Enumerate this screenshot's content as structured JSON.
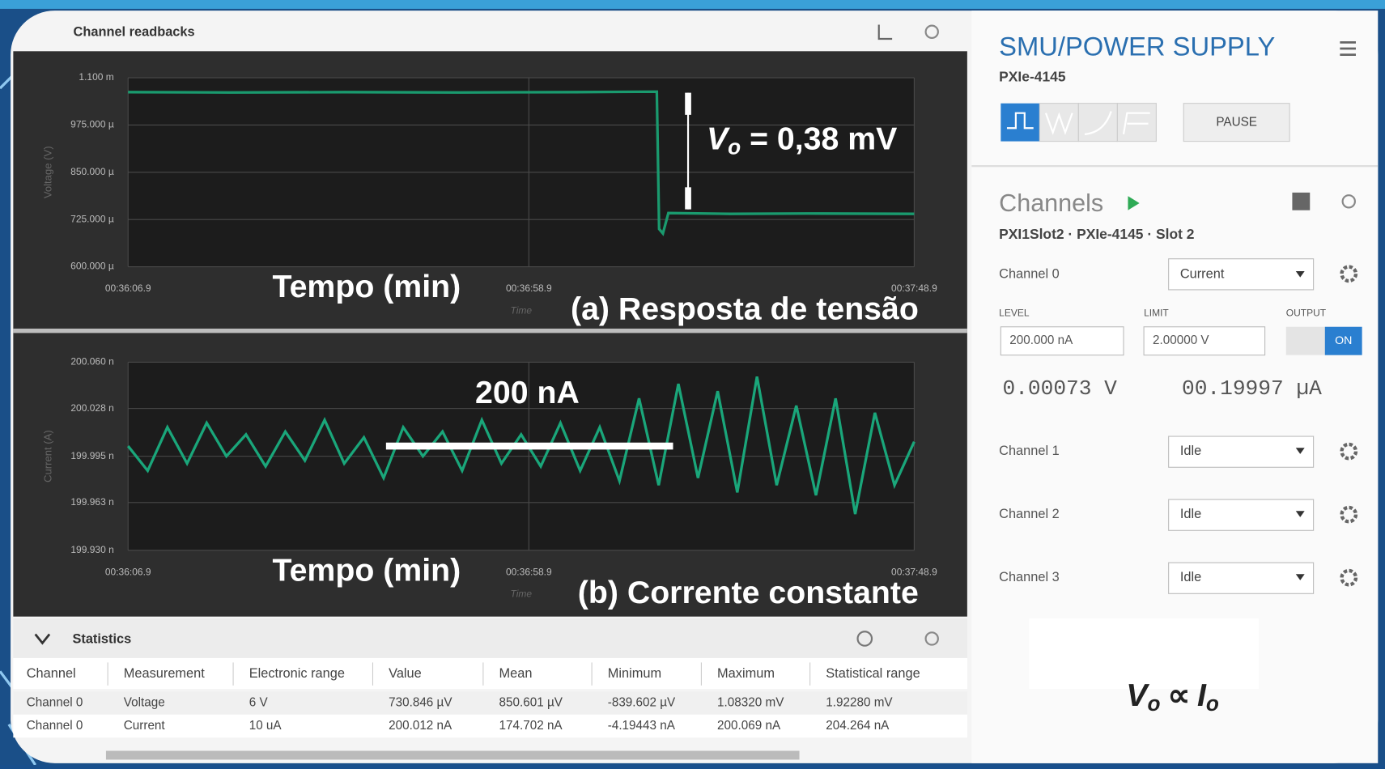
{
  "chart_data": [
    {
      "type": "line",
      "y_label": "Voltage (V)",
      "x_label": "Time",
      "color": "#1a9a6e",
      "grid": true,
      "xlim": [
        2166.9,
        2268.9
      ],
      "xticks": [
        {
          "value": 2166.9,
          "label": "00:36:06.9"
        },
        {
          "value": 2218.9,
          "label": "00:36:58.9"
        },
        {
          "value": 2268.9,
          "label": "00:37:48.9"
        }
      ],
      "ylim": [
        0.0006,
        0.0011
      ],
      "yticks": [
        {
          "value": 0.0011,
          "label": "1.100 m"
        },
        {
          "value": 0.000975,
          "label": "975.000 µ"
        },
        {
          "value": 0.00085,
          "label": "850.000 µ"
        },
        {
          "value": 0.000725,
          "label": "725.000 µ"
        },
        {
          "value": 0.0006,
          "label": "600.000 µ"
        }
      ],
      "x": [
        2166.9,
        2180,
        2195,
        2210,
        2225,
        2235.5,
        2235.8,
        2236.3,
        2237,
        2245,
        2255,
        2268.9
      ],
      "values": [
        0.001062,
        0.001061,
        0.001062,
        0.001061,
        0.001062,
        0.001063,
        0.0007,
        0.000688,
        0.000742,
        0.00074,
        0.000741,
        0.00074
      ],
      "annotations": [
        "Tempo (min)",
        "(a) Resposta de tensão"
      ],
      "marker_label": {
        "symbol": "V",
        "subscript": "o",
        "text": "= 0,38 mV"
      }
    },
    {
      "type": "line",
      "y_label": "Current (A)",
      "x_label": "Time",
      "color": "#1aa67a",
      "grid": true,
      "xlim": [
        2166.9,
        2268.9
      ],
      "xticks": [
        {
          "value": 2166.9,
          "label": "00:36:06.9"
        },
        {
          "value": 2218.9,
          "label": "00:36:58.9"
        },
        {
          "value": 2268.9,
          "label": "00:37:48.9"
        }
      ],
      "ylim": [
        1.9993e-07,
        2.0006e-07
      ],
      "yticks": [
        {
          "value": 2.0006e-07,
          "label": "200.060 n"
        },
        {
          "value": 2.00028e-07,
          "label": "200.028 n"
        },
        {
          "value": 1.99995e-07,
          "label": "199.995 n"
        },
        {
          "value": 1.99963e-07,
          "label": "199.963 n"
        },
        {
          "value": 1.9993e-07,
          "label": "199.930 n"
        }
      ],
      "x": [
        2166.9,
        2169.45,
        2172.0,
        2174.55,
        2177.1,
        2179.65,
        2182.2,
        2184.75,
        2187.3,
        2189.85,
        2192.4,
        2194.95,
        2197.5,
        2200.05,
        2202.6,
        2205.15,
        2207.7,
        2210.25,
        2212.8,
        2215.35,
        2217.9,
        2220.45,
        2223.0,
        2225.55,
        2228.1,
        2230.65,
        2233.2,
        2235.75,
        2238.3,
        2240.85,
        2243.4,
        2245.95,
        2248.5,
        2251.05,
        2253.6,
        2256.15,
        2258.7,
        2261.25,
        2263.8,
        2266.35,
        2268.9
      ],
      "values": [
        2.00002e-07,
        1.99985e-07,
        2.00015e-07,
        1.9999e-07,
        2.00018e-07,
        1.99995e-07,
        2.0001e-07,
        1.99988e-07,
        2.00012e-07,
        1.99992e-07,
        2.0002e-07,
        1.9999e-07,
        2.00008e-07,
        1.9998e-07,
        2.00015e-07,
        1.99995e-07,
        2.00012e-07,
        1.99985e-07,
        2.0002e-07,
        1.9999e-07,
        2.0001e-07,
        1.99988e-07,
        2.00018e-07,
        1.99985e-07,
        2.00015e-07,
        1.99978e-07,
        2.00035e-07,
        1.99975e-07,
        2.00045e-07,
        1.9998e-07,
        2.0004e-07,
        1.9997e-07,
        2.0005e-07,
        1.99975e-07,
        2.0003e-07,
        1.99968e-07,
        2.00035e-07,
        1.99955e-07,
        2.00025e-07,
        1.99975e-07,
        2.00005e-07
      ],
      "annotations": [
        "Tempo (min)",
        "(b) Corrente constante"
      ],
      "marker_label": "200 nA"
    }
  ],
  "panel": {
    "title": "Channel readbacks"
  },
  "statistics": {
    "title": "Statistics",
    "columns": [
      "Channel",
      "Measurement",
      "Electronic range",
      "Value",
      "Mean",
      "Minimum",
      "Maximum",
      "Statistical range"
    ],
    "rows": [
      [
        "Channel 0",
        "Voltage",
        "6 V",
        "730.846 µV",
        "850.601 µV",
        "-839.602 µV",
        "1.08320 mV",
        "1.92280 mV"
      ],
      [
        "Channel 0",
        "Current",
        "10 uA",
        "200.012 nA",
        "174.702 nA",
        "-4.19443 nA",
        "200.069 nA",
        "204.264 nA"
      ]
    ]
  },
  "smu": {
    "title": "SMU/POWER SUPPLY",
    "model": "PXIe-4145",
    "pause": "PAUSE",
    "channels_title": "Channels",
    "path": "PXI1Slot2 · PXIe-4145 · Slot 2",
    "channel0": {
      "name": "Channel 0",
      "mode": "Current",
      "level_label": "LEVEL",
      "limit_label": "LIMIT",
      "output_label": "OUTPUT",
      "level": "200.000 nA",
      "limit": "2.00000 V",
      "output": "ON",
      "voltage_reading": "0.00073 V",
      "current_reading": "00.19997 µA"
    },
    "other_channels": [
      {
        "name": "Channel 1",
        "mode": "Idle"
      },
      {
        "name": "Channel 2",
        "mode": "Idle"
      },
      {
        "name": "Channel 3",
        "mode": "Idle"
      }
    ]
  },
  "formula": {
    "left": "V",
    "left_sub": "o",
    "op": "∝",
    "right": "I",
    "right_sub": "o"
  }
}
